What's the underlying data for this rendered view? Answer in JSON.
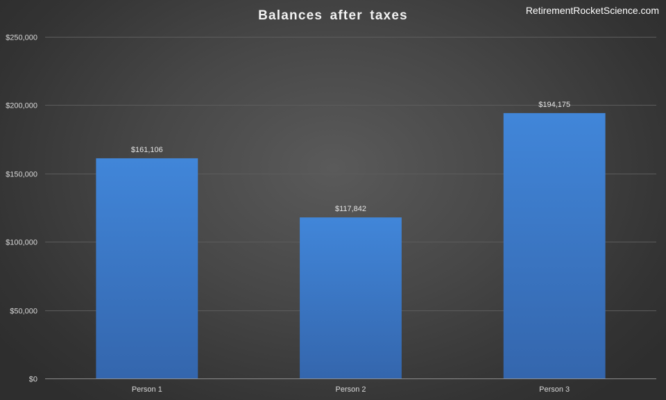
{
  "watermark": "RetirementRocketScience.com",
  "colors": {
    "bar_top": "#4186d9",
    "bar_bottom": "#3466ad",
    "grid": "#5c5c5c",
    "axis": "#8c8c8c"
  },
  "chart_data": {
    "type": "bar",
    "title": "Balances after taxes",
    "xlabel": "",
    "ylabel": "",
    "categories": [
      "Person 1",
      "Person 2",
      "Person 3"
    ],
    "values": [
      161106,
      117842,
      194175
    ],
    "data_labels": [
      "$161,106",
      "$117,842",
      "$194,175"
    ],
    "ylim": [
      0,
      250000
    ],
    "y_ticks": [
      0,
      50000,
      100000,
      150000,
      200000,
      250000
    ],
    "y_tick_labels": [
      "$0",
      "$50,000",
      "$100,000",
      "$150,000",
      "$200,000",
      "$250,000"
    ],
    "grid": true,
    "legend": "none"
  }
}
